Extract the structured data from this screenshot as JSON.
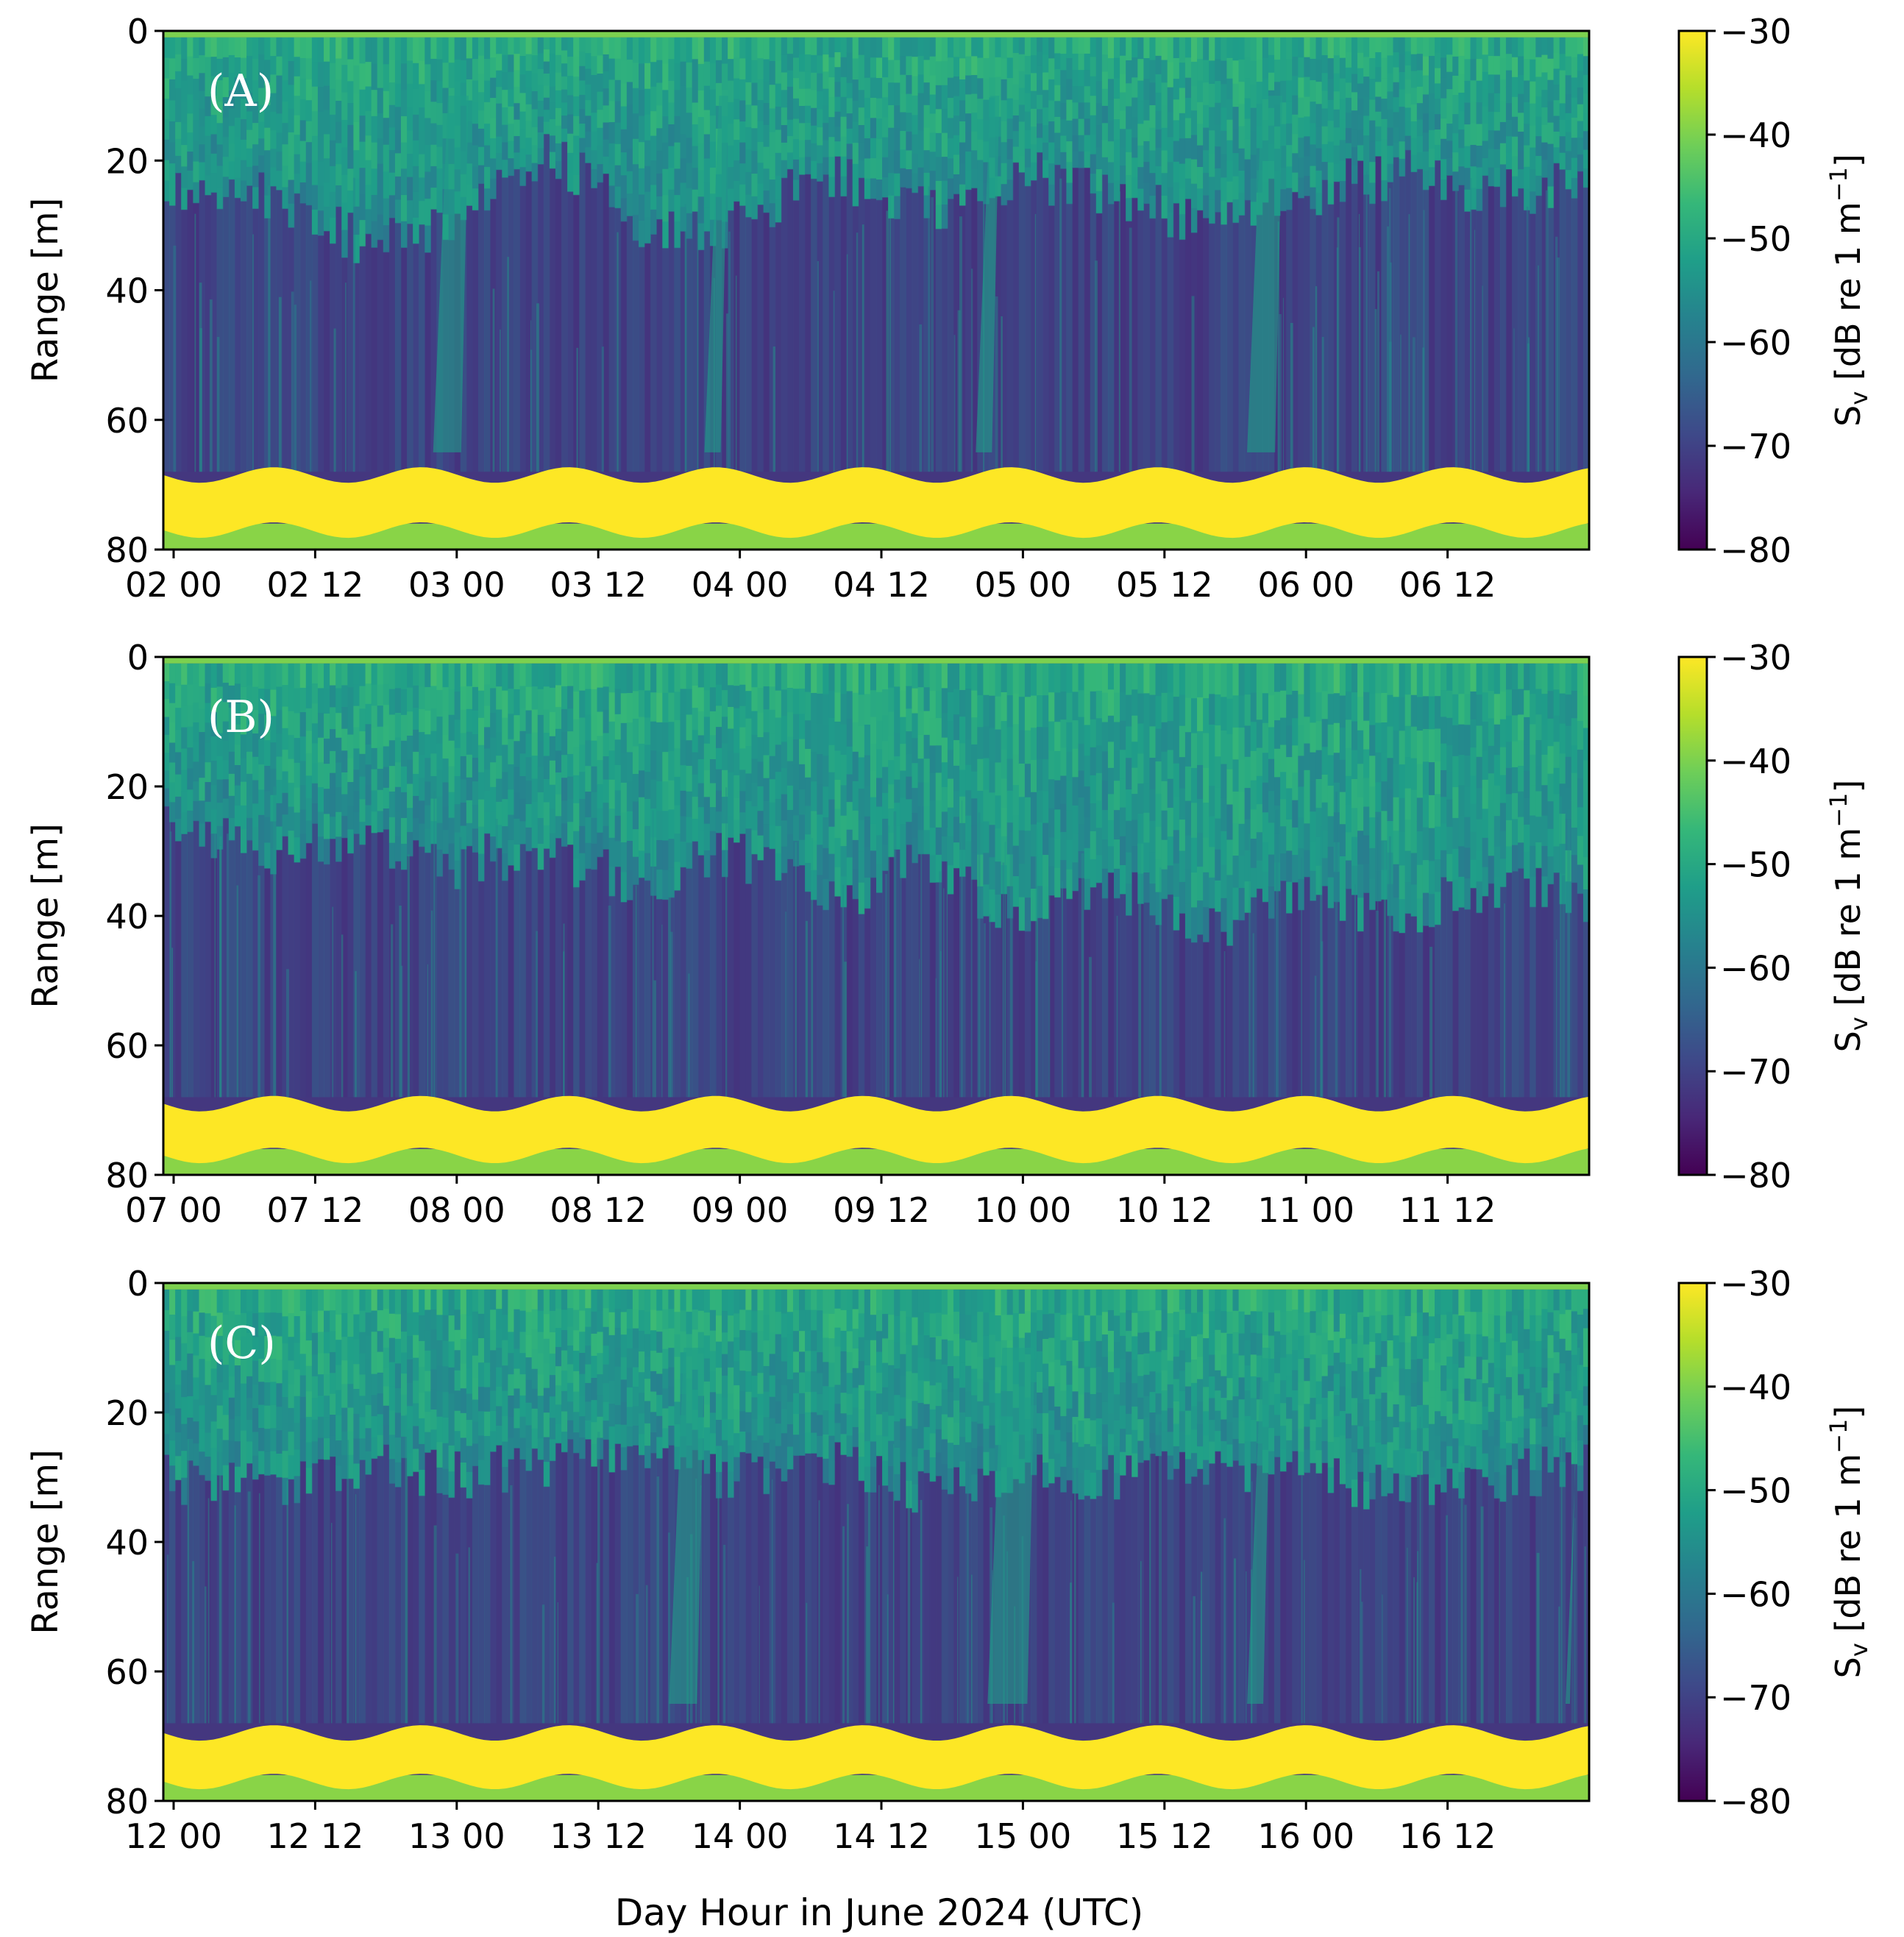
{
  "figure": {
    "xlabel": "Day Hour in June 2024 (UTC)"
  },
  "colorbar": {
    "label_main": "S",
    "label_sub": "v",
    "label_rest": " [dB re 1 m",
    "label_sup": "−1",
    "label_end": "]",
    "min": -80,
    "max": -30,
    "ticks": [
      "−30",
      "−40",
      "−50",
      "−60",
      "−70",
      "−80"
    ],
    "tick_values": [
      -30,
      -40,
      -50,
      -60,
      -70,
      -80
    ],
    "colormap": "viridis",
    "colors": [
      "#440154",
      "#482878",
      "#3e4989",
      "#31688e",
      "#26828e",
      "#1f9e89",
      "#35b779",
      "#6ece58",
      "#b5de2b",
      "#fde725"
    ]
  },
  "chart_data": [
    {
      "type": "heatmap",
      "panel_label": "(A)",
      "ylabel": "Range [m]",
      "ylim": [
        80,
        0
      ],
      "y_ticks": [
        "0",
        "20",
        "40",
        "60",
        "80"
      ],
      "y_tick_values": [
        0,
        20,
        40,
        60,
        80
      ],
      "x_start": "2024-06-02 00:00",
      "x_end": "2024-06-06 23:59",
      "x_ticks": [
        "02 00",
        "02 12",
        "03 00",
        "03 12",
        "04 00",
        "04 12",
        "05 00",
        "05 12",
        "06 00",
        "06 12"
      ],
      "upper_layer_base_m": [
        25,
        25,
        32,
        30,
        18,
        30,
        30,
        22,
        28,
        22,
        25,
        30,
        25,
        22,
        25,
        24
      ],
      "bottom_echo_m": [
        68.5,
        71
      ],
      "bottom_echo_period_hours": 12.4,
      "vertical_plumes_day_hour": [
        [
          "02 22",
          "03 01"
        ],
        [
          "03 21",
          "03 23"
        ],
        [
          "04 20",
          "04 22"
        ],
        [
          "05 19",
          "05 22"
        ]
      ],
      "surface_band_m": 1
    },
    {
      "type": "heatmap",
      "panel_label": "(B)",
      "ylabel": "Range [m]",
      "ylim": [
        80,
        0
      ],
      "y_ticks": [
        "0",
        "20",
        "40",
        "60",
        "80"
      ],
      "y_tick_values": [
        0,
        20,
        40,
        60,
        80
      ],
      "x_start": "2024-06-07 00:00",
      "x_end": "2024-06-11 23:59",
      "x_ticks": [
        "07 00",
        "07 12",
        "08 00",
        "08 12",
        "09 00",
        "09 12",
        "10 00",
        "10 12",
        "11 00",
        "11 12"
      ],
      "upper_layer_base_m": [
        25,
        30,
        28,
        32,
        30,
        35,
        30,
        38,
        32,
        40,
        35,
        42,
        36,
        40,
        35,
        38
      ],
      "bottom_echo_m": [
        69,
        71.5
      ],
      "bottom_echo_period_hours": 12.4,
      "surface_band_m": 1
    },
    {
      "type": "heatmap",
      "panel_label": "(C)",
      "ylabel": "Range [m]",
      "ylim": [
        80,
        0
      ],
      "y_ticks": [
        "0",
        "20",
        "40",
        "60",
        "80"
      ],
      "y_tick_values": [
        0,
        20,
        40,
        60,
        80
      ],
      "x_start": "2024-06-12 00:00",
      "x_end": "2024-06-16 23:59",
      "x_ticks": [
        "12 00",
        "12 12",
        "13 00",
        "13 12",
        "14 00",
        "14 12",
        "15 00",
        "15 12",
        "16 00",
        "16 12"
      ],
      "upper_layer_base_m": [
        30,
        32,
        28,
        30,
        28,
        26,
        30,
        28,
        32,
        30,
        30,
        28,
        30,
        32,
        30,
        28
      ],
      "bottom_echo_m": [
        69.5,
        71
      ],
      "bottom_echo_period_hours": 12.4,
      "vertical_plumes_day_hour": [
        [
          "13 18",
          "13 21"
        ],
        [
          "14 21",
          "15 01"
        ],
        [
          "15 19",
          "15 21"
        ],
        [
          "16 22",
          "16 23"
        ]
      ],
      "surface_band_m": 1
    }
  ]
}
